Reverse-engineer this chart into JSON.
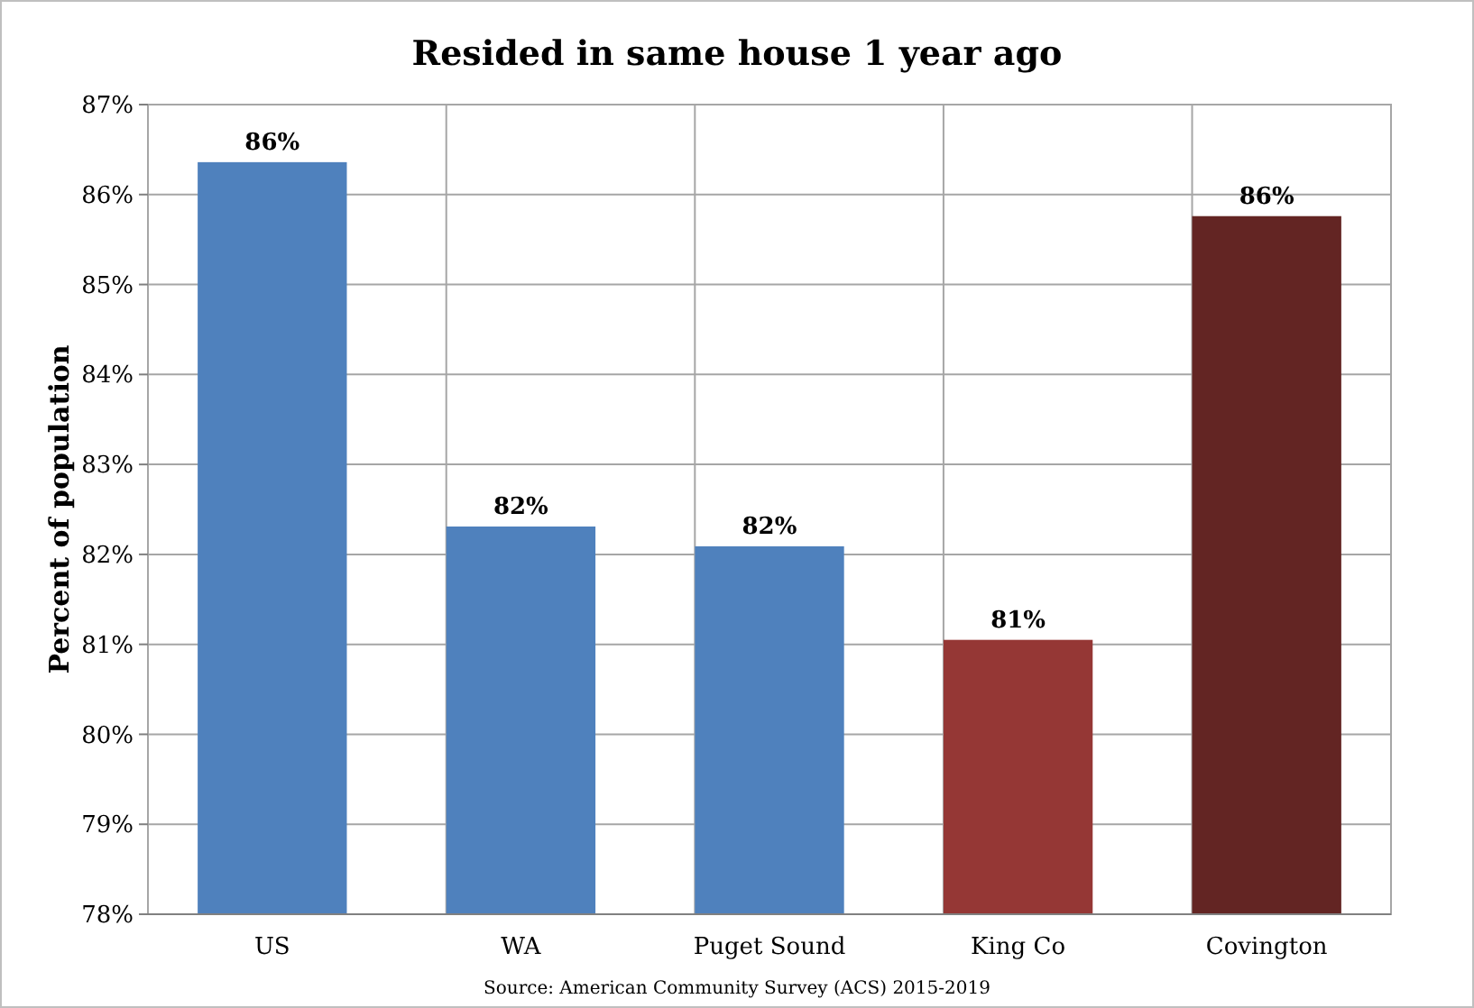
{
  "chart_data": {
    "type": "bar",
    "title": "Resided in same house 1 year ago",
    "ylabel": "Percent of population",
    "categories": [
      "US",
      "WA",
      "Puget Sound",
      "King Co",
      "Covington"
    ],
    "values": [
      86.36,
      82.31,
      82.09,
      81.05,
      85.76
    ],
    "colors": [
      "#4f81bd",
      "#4f81bd",
      "#4f81bd",
      "#953735",
      "#632523"
    ],
    "value_labels": [
      "86%",
      "82%",
      "82%",
      "81%",
      "86%"
    ],
    "ylim": [
      78,
      87
    ],
    "yticks": [
      {
        "value": 78,
        "label": "78%"
      },
      {
        "value": 79,
        "label": "79%"
      },
      {
        "value": 80,
        "label": "80%"
      },
      {
        "value": 81,
        "label": "81%"
      },
      {
        "value": 82,
        "label": "82%"
      },
      {
        "value": 83,
        "label": "83%"
      },
      {
        "value": 84,
        "label": "84%"
      },
      {
        "value": 85,
        "label": "85%"
      },
      {
        "value": 86,
        "label": "86%"
      },
      {
        "value": 87,
        "label": "87%"
      }
    ],
    "grid": true,
    "annotations": [
      "Source: American Community Survey (ACS) 2015-2019"
    ]
  }
}
